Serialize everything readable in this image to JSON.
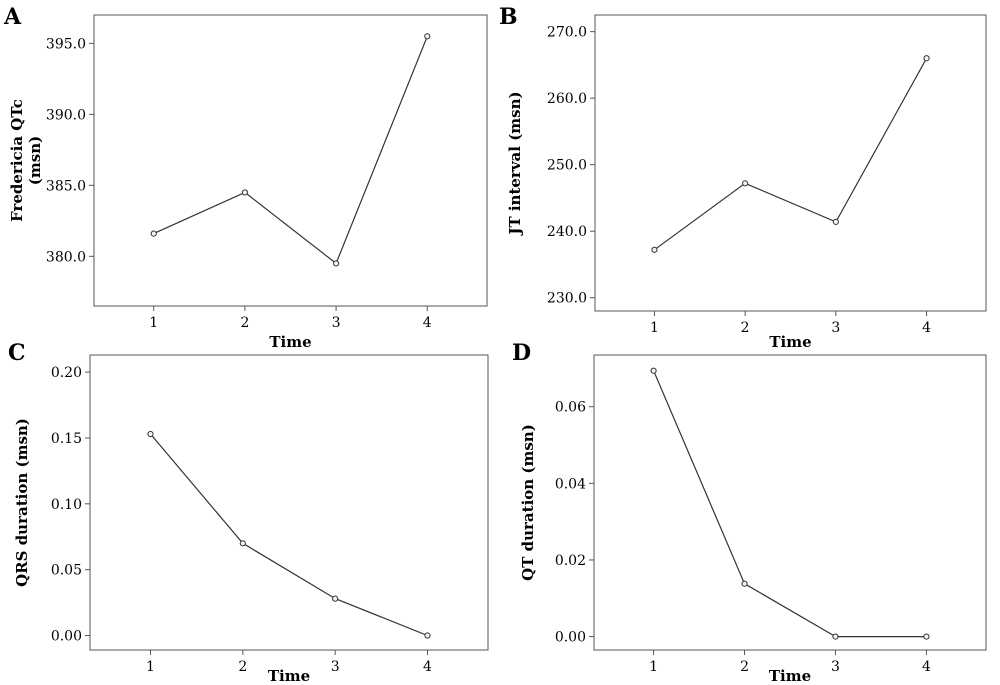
{
  "chart_data": [
    {
      "panel": "A",
      "type": "line",
      "xlabel": "Time",
      "ylabel": [
        "Fredericia QTc",
        "(msn)"
      ],
      "x": [
        1,
        2,
        3,
        4
      ],
      "values": [
        381.6,
        384.5,
        379.5,
        395.5
      ],
      "yticks": [
        380.0,
        385.0,
        390.0,
        395.0
      ],
      "ylim": [
        376.5,
        397.0
      ],
      "decimals": 1
    },
    {
      "panel": "B",
      "type": "line",
      "xlabel": "Time",
      "ylabel": [
        "JT interval (msn)"
      ],
      "x": [
        1,
        2,
        3,
        4
      ],
      "values": [
        237.2,
        247.2,
        241.4,
        266.0
      ],
      "yticks": [
        230.0,
        240.0,
        250.0,
        260.0,
        270.0
      ],
      "ylim": [
        228.0,
        272.5
      ],
      "decimals": 1
    },
    {
      "panel": "C",
      "type": "line",
      "xlabel": "Time",
      "ylabel": [
        "QRS duration (msn)"
      ],
      "x": [
        1,
        2,
        3,
        4
      ],
      "values": [
        0.153,
        0.07,
        0.028,
        0.0
      ],
      "yticks": [
        0.0,
        0.05,
        0.1,
        0.15,
        0.2
      ],
      "ylim": [
        -0.011,
        0.213
      ],
      "decimals": 2
    },
    {
      "panel": "D",
      "type": "line",
      "xlabel": "Time",
      "ylabel": [
        "QT duration (msn)"
      ],
      "x": [
        1,
        2,
        3,
        4
      ],
      "values": [
        0.0694,
        0.0138,
        0.0,
        0.0
      ],
      "yticks": [
        0.0,
        0.02,
        0.04,
        0.06
      ],
      "ylim": [
        -0.0035,
        0.0735
      ],
      "decimals": 2
    }
  ]
}
